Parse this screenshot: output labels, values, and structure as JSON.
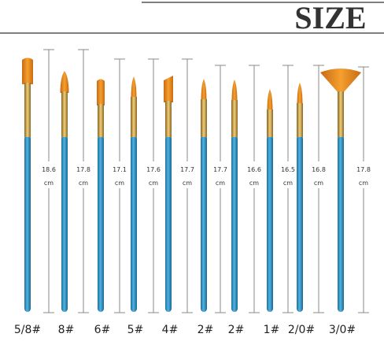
{
  "header": {
    "title": "SIZE"
  },
  "brushes": [
    {
      "label": "5/8#",
      "length": "18.6",
      "unit": "cm"
    },
    {
      "label": "8#",
      "length": "17.8",
      "unit": "cm"
    },
    {
      "label": "6#",
      "length": "17.1",
      "unit": "cm"
    },
    {
      "label": "5#",
      "length": "17.6",
      "unit": "cm"
    },
    {
      "label": "4#",
      "length": "17.7",
      "unit": "cm"
    },
    {
      "label": "2#",
      "length": "17.7",
      "unit": "cm"
    },
    {
      "label": "2#",
      "length": "16.6",
      "unit": "cm"
    },
    {
      "label": "1#",
      "length": "16.5",
      "unit": "cm"
    },
    {
      "label": "2/0#",
      "length": "16.8",
      "unit": "cm"
    },
    {
      "label": "3/0#",
      "length": "17.8",
      "unit": "cm"
    }
  ]
}
